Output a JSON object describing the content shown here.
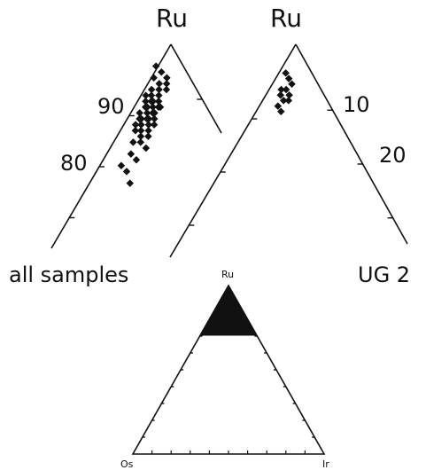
{
  "colors": {
    "ink": "#111111",
    "background": "#ffffff"
  },
  "chart_data": [
    {
      "type": "scatter",
      "subtype": "ternary-zoom",
      "caption": "all samples",
      "apex_label": "Ru",
      "tick_labels": [
        "90",
        "80"
      ],
      "points_ru_pct": [
        99,
        98,
        97,
        97,
        96,
        96,
        95,
        95,
        95,
        94,
        94,
        94,
        93,
        93,
        93,
        93,
        92,
        92,
        92,
        92,
        92,
        91,
        91,
        91,
        91,
        90,
        90,
        90,
        90,
        90,
        89,
        89,
        89,
        89,
        88,
        88,
        88,
        87,
        87,
        86,
        86,
        85,
        84,
        83,
        82,
        81,
        79
      ],
      "marker": "diamond"
    },
    {
      "type": "scatter",
      "subtype": "ternary-zoom",
      "caption": "UG 2",
      "apex_label": "Ru",
      "tick_labels": [
        "10",
        "20"
      ],
      "points_ru_pct": [
        98,
        97,
        96,
        95,
        95,
        94,
        94,
        93,
        93,
        92,
        91
      ],
      "marker": "diamond"
    },
    {
      "type": "ternary",
      "apex_labels": {
        "top": "Ru",
        "left": "Os",
        "right": "Ir"
      },
      "shaded_region": "Ru-rich corner (zoomed area)"
    }
  ]
}
